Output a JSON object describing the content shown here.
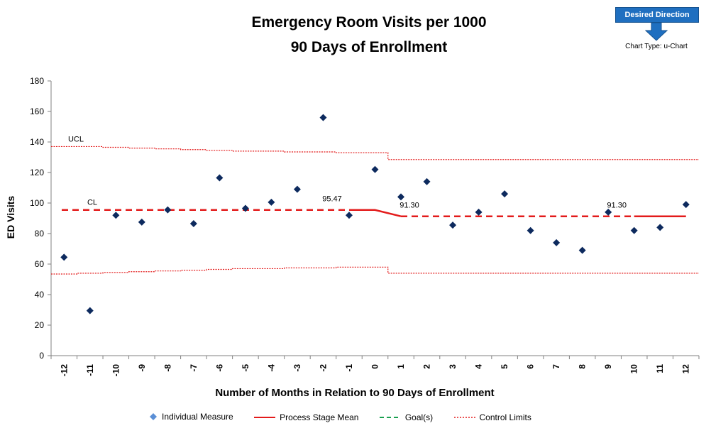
{
  "desired_direction": {
    "label": "Desired Direction",
    "arrow_icon": "down-arrow-icon",
    "color": "#1f6fc0"
  },
  "chart_type_label": "Chart Type: u-Chart",
  "chart_data": {
    "type": "scatter",
    "title": "Emergency Room Visits per 1000",
    "subtitle": "90 Days of Enrollment",
    "xlabel": "Number of Months in Relation to 90 Days of Enrollment",
    "ylabel": "ED Visits",
    "ylim": [
      0,
      180
    ],
    "yticks": [
      0,
      20,
      40,
      60,
      80,
      100,
      120,
      140,
      160,
      180
    ],
    "x": [
      -12,
      -11,
      -10,
      -9,
      -8,
      -7,
      -6,
      -5,
      -4,
      -3,
      -2,
      -1,
      0,
      1,
      2,
      3,
      4,
      5,
      6,
      7,
      8,
      9,
      10,
      11,
      12
    ],
    "categories": [
      "-12",
      "-11",
      "-10",
      "-9",
      "-8",
      "-7",
      "-6",
      "-5",
      "-4",
      "-3",
      "-2",
      "-1",
      "0",
      "1",
      "2",
      "3",
      "4",
      "5",
      "6",
      "7",
      "8",
      "9",
      "10",
      "11",
      "12"
    ],
    "series": [
      {
        "name": "Individual Measure",
        "color": "#0d2a5e",
        "values": [
          64.5,
          29.5,
          92,
          87.5,
          95.5,
          86.5,
          116.5,
          96.5,
          100.5,
          109,
          156,
          92,
          122,
          104,
          114,
          85.5,
          94,
          106,
          82,
          74,
          69,
          94,
          82,
          84,
          99
        ]
      }
    ],
    "process_stage_mean": {
      "name": "Process Stage Mean",
      "color": "#e31b1b",
      "stage1": {
        "from": -12,
        "to": 0,
        "value": 95.47,
        "label": "95.47"
      },
      "stage2": {
        "from": 1,
        "to": 12,
        "value": 91.3,
        "label": "91.30"
      },
      "labels_extra": [
        "91.30"
      ]
    },
    "control_limits": {
      "name": "Control Limits",
      "color": "#e31b1b",
      "ucl": [
        137,
        137,
        136.5,
        136,
        135.5,
        135,
        134.5,
        134,
        134,
        133.5,
        133.5,
        133,
        133,
        128.5,
        128.5,
        128.5,
        128.5,
        128.5,
        128.5,
        128.5,
        128.5,
        128.5,
        128.5,
        128.5,
        128.5
      ],
      "lcl": [
        53.5,
        54,
        54.5,
        55,
        55.5,
        56,
        56.5,
        57,
        57,
        57.5,
        57.5,
        58,
        58,
        54,
        54,
        54,
        54,
        54,
        54,
        54,
        54,
        54,
        54,
        54,
        54
      ]
    },
    "annotations": {
      "ucl_label": "UCL",
      "cl_label": "CL"
    },
    "legend": [
      {
        "name": "Individual Measure",
        "icon": "diamond-marker-icon",
        "color": "#0d2a5e"
      },
      {
        "name": "Process Stage Mean",
        "icon": "solid-line-icon",
        "color": "#e31b1b"
      },
      {
        "name": "Goal(s)",
        "icon": "dashed-line-icon",
        "color": "#1aa050"
      },
      {
        "name": "Control Limits",
        "icon": "dotted-line-icon",
        "color": "#e31b1b"
      }
    ],
    "legend_position": "bottom"
  }
}
